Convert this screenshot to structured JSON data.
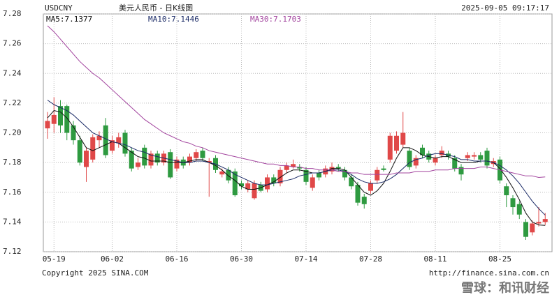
{
  "chart_data": {
    "type": "candlestick",
    "symbol": "USDCNY",
    "title": "美元人民币 - 日K线图",
    "timestamp": "2025-09-05 09:17:17",
    "copyright": "Copyright 2025 SINA.COM",
    "source": "http://finance.sina.com.cn",
    "watermark": "雪球：和讯财经",
    "up_color": "#e04848",
    "down_color": "#2e9a40",
    "grid": true,
    "ylim": [
      7.12,
      7.28
    ],
    "yticks": [
      7.12,
      7.14,
      7.16,
      7.18,
      {
        "value": 7.2,
        "label": "7.20"
      },
      7.22,
      7.24,
      7.26,
      7.28
    ],
    "categories": [
      null,
      "05-19",
      null,
      null,
      null,
      null,
      null,
      null,
      null,
      null,
      "06-02",
      null,
      null,
      null,
      null,
      null,
      null,
      null,
      null,
      null,
      "06-16",
      null,
      null,
      null,
      null,
      null,
      null,
      null,
      null,
      null,
      "06-30",
      null,
      null,
      null,
      null,
      null,
      null,
      null,
      null,
      null,
      "07-14",
      null,
      null,
      null,
      null,
      null,
      null,
      null,
      null,
      null,
      "07-28",
      null,
      null,
      null,
      null,
      null,
      null,
      null,
      null,
      null,
      "08-11",
      null,
      null,
      null,
      null,
      null,
      null,
      null,
      null,
      null,
      "08-25",
      null,
      null,
      null,
      null,
      null,
      null,
      null
    ],
    "open": [
      7.203,
      7.206,
      7.218,
      7.218,
      7.205,
      7.195,
      7.177,
      7.182,
      7.195,
      7.205,
      7.188,
      7.193,
      7.2,
      7.188,
      7.177,
      7.19,
      7.178,
      7.186,
      7.18,
      7.187,
      7.176,
      7.182,
      7.18,
      7.183,
      7.188,
      7.18,
      7.183,
      7.172,
      7.175,
      7.174,
      7.166,
      7.162,
      7.156,
      7.165,
      7.162,
      7.17,
      7.166,
      7.175,
      7.177,
      7.177,
      7.175,
      7.163,
      7.173,
      7.172,
      7.174,
      7.177,
      7.175,
      7.17,
      7.165,
      7.157,
      7.161,
      7.168,
      7.176,
      7.182,
      7.188,
      7.192,
      7.188,
      7.178,
      7.19,
      7.186,
      7.18,
      7.185,
      7.186,
      7.183,
      7.177,
      7.183,
      7.184,
      7.185,
      7.188,
      7.179,
      7.182,
      7.164,
      7.156,
      7.152,
      7.14,
      7.133,
      7.139,
      7.14
    ],
    "high": [
      7.214,
      7.224,
      7.222,
      7.219,
      7.208,
      7.198,
      7.19,
      7.199,
      7.201,
      7.21,
      7.198,
      7.2,
      7.202,
      7.19,
      7.183,
      7.192,
      7.188,
      7.188,
      7.188,
      7.189,
      7.184,
      7.184,
      7.186,
      7.189,
      7.19,
      7.183,
      7.185,
      7.176,
      7.177,
      7.176,
      7.168,
      7.168,
      7.168,
      7.167,
      7.172,
      7.172,
      7.177,
      7.18,
      7.182,
      7.179,
      7.177,
      7.172,
      7.175,
      7.178,
      7.18,
      7.179,
      7.177,
      7.172,
      7.167,
      7.159,
      7.168,
      7.177,
      7.178,
      7.2,
      7.201,
      7.214,
      7.19,
      7.185,
      7.192,
      7.188,
      7.185,
      7.191,
      7.188,
      7.185,
      7.179,
      7.187,
      7.187,
      7.187,
      7.19,
      7.183,
      7.184,
      7.166,
      7.158,
      7.154,
      7.142,
      7.141,
      7.15,
      7.146
    ],
    "low": [
      7.196,
      7.2,
      7.2,
      7.195,
      7.192,
      7.178,
      7.167,
      7.18,
      7.19,
      7.183,
      7.186,
      7.19,
      7.184,
      7.174,
      7.175,
      7.176,
      7.176,
      7.178,
      7.178,
      7.169,
      7.174,
      7.176,
      7.178,
      7.181,
      7.181,
      7.157,
      7.173,
      7.17,
      7.166,
      7.157,
      7.162,
      7.16,
      7.155,
      7.16,
      7.16,
      7.164,
      7.164,
      7.173,
      7.176,
      7.174,
      7.165,
      7.161,
      7.168,
      7.17,
      7.172,
      7.174,
      7.168,
      7.162,
      7.151,
      7.149,
      7.159,
      7.166,
      7.174,
      7.18,
      7.186,
      7.19,
      7.175,
      7.176,
      7.183,
      7.18,
      7.178,
      7.183,
      7.182,
      7.174,
      7.168,
      7.181,
      7.182,
      7.18,
      7.176,
      7.177,
      7.166,
      7.15,
      7.145,
      7.142,
      7.128,
      7.131,
      7.137,
      7.138
    ],
    "close": [
      7.208,
      7.212,
      7.205,
      7.2,
      7.195,
      7.18,
      7.188,
      7.197,
      7.198,
      7.185,
      7.195,
      7.197,
      7.186,
      7.176,
      7.18,
      7.178,
      7.186,
      7.18,
      7.186,
      7.17,
      7.182,
      7.178,
      7.184,
      7.187,
      7.183,
      7.181,
      7.175,
      7.174,
      7.168,
      7.158,
      7.164,
      7.166,
      7.166,
      7.161,
      7.17,
      7.166,
      7.175,
      7.178,
      7.179,
      7.176,
      7.167,
      7.17,
      7.17,
      7.176,
      7.177,
      7.176,
      7.17,
      7.164,
      7.153,
      7.152,
      7.166,
      7.175,
      7.175,
      7.198,
      7.198,
      7.2,
      7.177,
      7.183,
      7.185,
      7.182,
      7.183,
      7.188,
      7.184,
      7.176,
      7.172,
      7.185,
      7.185,
      7.182,
      7.178,
      7.181,
      7.168,
      7.158,
      7.15,
      7.145,
      7.13,
      7.139,
      7.14,
      7.142
    ],
    "series": [
      {
        "name": "MA5:7.1377",
        "color": "#111111",
        "values": [
          7.21,
          7.215,
          7.214,
          7.21,
          7.204,
          7.197,
          7.19,
          7.188,
          7.19,
          7.192,
          7.194,
          7.193,
          7.19,
          7.187,
          7.184,
          7.183,
          7.181,
          7.181,
          7.181,
          7.18,
          7.18,
          7.18,
          7.181,
          7.182,
          7.182,
          7.18,
          7.178,
          7.175,
          7.171,
          7.168,
          7.164,
          7.162,
          7.162,
          7.163,
          7.165,
          7.167,
          7.17,
          7.173,
          7.175,
          7.175,
          7.174,
          7.173,
          7.173,
          7.174,
          7.176,
          7.176,
          7.175,
          7.17,
          7.165,
          7.16,
          7.158,
          7.161,
          7.166,
          7.174,
          7.183,
          7.19,
          7.19,
          7.188,
          7.185,
          7.184,
          7.183,
          7.184,
          7.184,
          7.182,
          7.18,
          7.18,
          7.18,
          7.181,
          7.181,
          7.18,
          7.176,
          7.17,
          7.163,
          7.155,
          7.146,
          7.14,
          7.138,
          7.1377
        ]
      },
      {
        "name": "MA10:7.1446",
        "color": "#1a2a66",
        "values": [
          7.222,
          7.219,
          7.217,
          7.215,
          7.212,
          7.208,
          7.204,
          7.2,
          7.198,
          7.196,
          7.194,
          7.193,
          7.192,
          7.19,
          7.188,
          7.187,
          7.185,
          7.184,
          7.183,
          7.182,
          7.181,
          7.18,
          7.18,
          7.181,
          7.181,
          7.18,
          7.179,
          7.177,
          7.175,
          7.172,
          7.17,
          7.168,
          7.166,
          7.165,
          7.165,
          7.166,
          7.167,
          7.168,
          7.169,
          7.171,
          7.172,
          7.173,
          7.173,
          7.174,
          7.175,
          7.175,
          7.174,
          7.172,
          7.169,
          7.167,
          7.166,
          7.166,
          7.167,
          7.169,
          7.172,
          7.176,
          7.18,
          7.182,
          7.183,
          7.185,
          7.186,
          7.186,
          7.185,
          7.184,
          7.182,
          7.182,
          7.181,
          7.181,
          7.181,
          7.18,
          7.178,
          7.175,
          7.171,
          7.166,
          7.16,
          7.154,
          7.149,
          7.1446
        ]
      },
      {
        "name": "MA30:7.1703",
        "color": "#a2449e",
        "values": [
          7.272,
          7.268,
          7.263,
          7.258,
          7.253,
          7.248,
          7.244,
          7.24,
          7.237,
          7.233,
          7.229,
          7.225,
          7.221,
          7.217,
          7.213,
          7.209,
          7.206,
          7.203,
          7.2,
          7.198,
          7.196,
          7.194,
          7.193,
          7.191,
          7.19,
          7.188,
          7.187,
          7.186,
          7.185,
          7.184,
          7.183,
          7.182,
          7.181,
          7.18,
          7.179,
          7.179,
          7.178,
          7.178,
          7.177,
          7.177,
          7.176,
          7.176,
          7.175,
          7.175,
          7.175,
          7.174,
          7.174,
          7.173,
          7.173,
          7.172,
          7.172,
          7.172,
          7.172,
          7.172,
          7.173,
          7.173,
          7.173,
          7.174,
          7.174,
          7.174,
          7.175,
          7.175,
          7.175,
          7.176,
          7.176,
          7.176,
          7.176,
          7.177,
          7.177,
          7.176,
          7.175,
          7.174,
          7.173,
          7.172,
          7.171,
          7.171,
          7.17,
          7.1703
        ]
      }
    ]
  }
}
